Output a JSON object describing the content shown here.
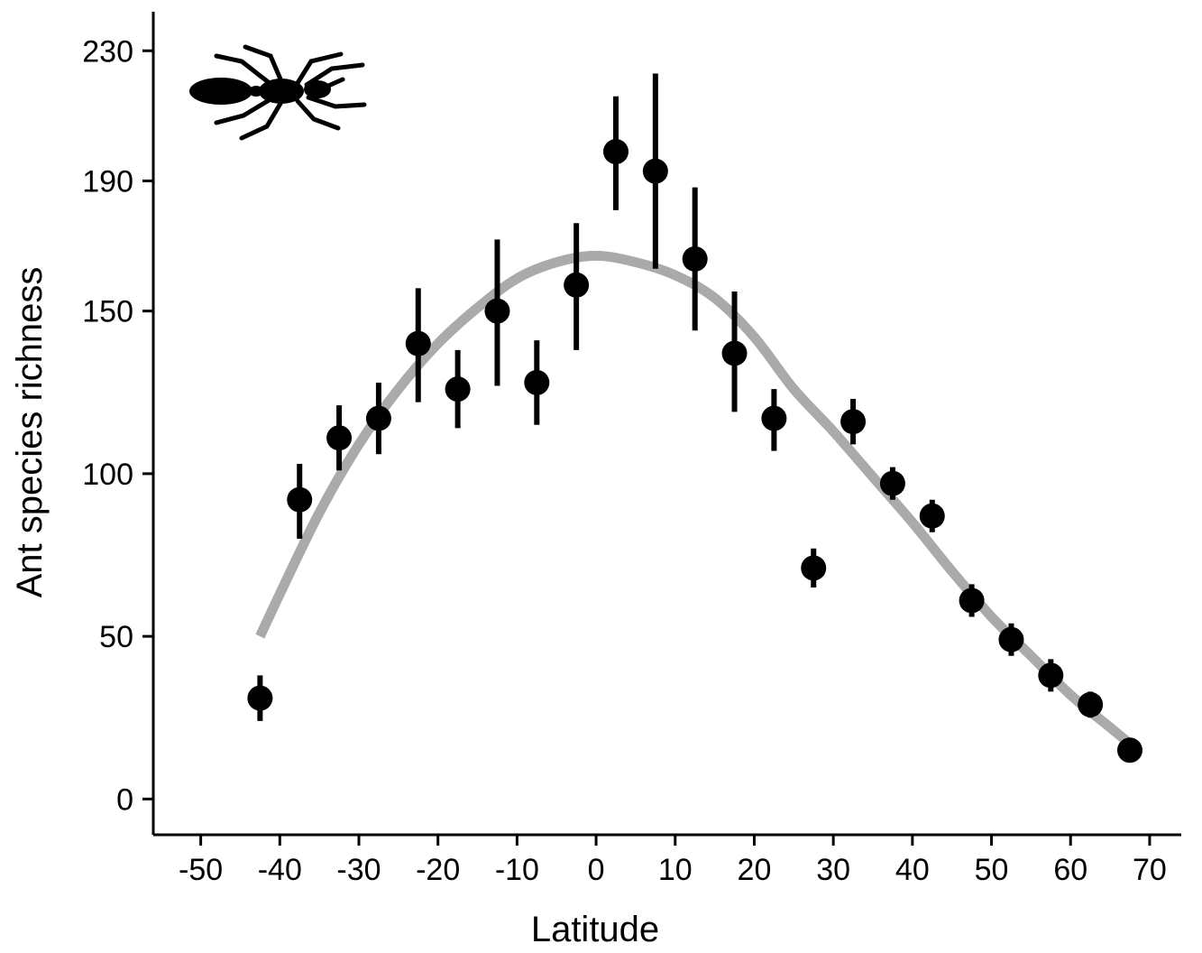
{
  "chart_data": {
    "type": "scatter",
    "xlabel": "Latitude",
    "ylabel": "Ant species richness",
    "xlim": [
      -56,
      74
    ],
    "ylim": [
      -11,
      242
    ],
    "x_ticks": [
      -50,
      -40,
      -30,
      -20,
      -10,
      0,
      10,
      20,
      30,
      40,
      50,
      60,
      70
    ],
    "y_ticks": [
      0,
      50,
      100,
      150,
      190,
      230
    ],
    "grid": false,
    "legend": "none",
    "points": [
      {
        "x": -42.5,
        "y": 31,
        "lo": 24,
        "hi": 38
      },
      {
        "x": -37.5,
        "y": 92,
        "lo": 80,
        "hi": 103
      },
      {
        "x": -32.5,
        "y": 111,
        "lo": 101,
        "hi": 121
      },
      {
        "x": -27.5,
        "y": 117,
        "lo": 106,
        "hi": 128
      },
      {
        "x": -22.5,
        "y": 140,
        "lo": 122,
        "hi": 157
      },
      {
        "x": -17.5,
        "y": 126,
        "lo": 114,
        "hi": 138
      },
      {
        "x": -12.5,
        "y": 150,
        "lo": 127,
        "hi": 172
      },
      {
        "x": -7.5,
        "y": 128,
        "lo": 115,
        "hi": 141
      },
      {
        "x": -2.5,
        "y": 158,
        "lo": 138,
        "hi": 177
      },
      {
        "x": 2.5,
        "y": 199,
        "lo": 181,
        "hi": 216
      },
      {
        "x": 7.5,
        "y": 193,
        "lo": 163,
        "hi": 223
      },
      {
        "x": 12.5,
        "y": 166,
        "lo": 144,
        "hi": 188
      },
      {
        "x": 17.5,
        "y": 137,
        "lo": 119,
        "hi": 156
      },
      {
        "x": 22.5,
        "y": 117,
        "lo": 107,
        "hi": 126
      },
      {
        "x": 27.5,
        "y": 71,
        "lo": 65,
        "hi": 77
      },
      {
        "x": 32.5,
        "y": 116,
        "lo": 109,
        "hi": 123
      },
      {
        "x": 37.5,
        "y": 97,
        "lo": 92,
        "hi": 102
      },
      {
        "x": 42.5,
        "y": 87,
        "lo": 82,
        "hi": 92
      },
      {
        "x": 47.5,
        "y": 61,
        "lo": 56,
        "hi": 66
      },
      {
        "x": 52.5,
        "y": 49,
        "lo": 44,
        "hi": 54
      },
      {
        "x": 57.5,
        "y": 38,
        "lo": 33,
        "hi": 43
      },
      {
        "x": 62.5,
        "y": 29,
        "lo": 25,
        "hi": 33
      },
      {
        "x": 67.5,
        "y": 15,
        "lo": 13,
        "hi": 17
      }
    ],
    "fit_curve": {
      "x": [
        -42.5,
        -40,
        -35,
        -30,
        -25,
        -20,
        -15,
        -10,
        -5,
        0,
        5,
        10,
        15,
        20,
        25,
        30,
        35,
        40,
        45,
        50,
        55,
        60,
        65,
        67.5
      ],
      "y": [
        50,
        63,
        88,
        109,
        126,
        140,
        151,
        160,
        165,
        167,
        165,
        161,
        154,
        142,
        126,
        113,
        99,
        85,
        70,
        56,
        44,
        32,
        22,
        17
      ]
    },
    "colors": {
      "points": "#000000",
      "fit_curve": "#aaaaaa",
      "axes": "#000000"
    },
    "icon": "ant-silhouette-icon"
  }
}
